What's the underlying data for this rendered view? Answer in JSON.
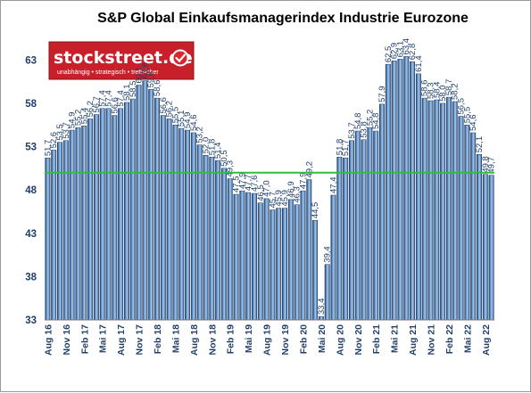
{
  "chart_data": {
    "type": "bar",
    "title": "S&P Global Einkaufsmanagerindex Industrie Eurozone",
    "xlabel": "",
    "ylabel": "",
    "ylim": [
      33,
      65.5
    ],
    "yticks": [
      33,
      38,
      43,
      48,
      53,
      58,
      63
    ],
    "grid": false,
    "reference_line": {
      "value": 50,
      "color": "#2fbf3a"
    },
    "bar_color": "#4a7db5",
    "tick_labels": [
      {
        "index": 0,
        "label": "Aug 16"
      },
      {
        "index": 3,
        "label": "Nov 16"
      },
      {
        "index": 6,
        "label": "Feb 17"
      },
      {
        "index": 9,
        "label": "Mai 17"
      },
      {
        "index": 12,
        "label": "Aug 17"
      },
      {
        "index": 15,
        "label": "Nov 17"
      },
      {
        "index": 18,
        "label": "Feb 18"
      },
      {
        "index": 21,
        "label": "Mai 18"
      },
      {
        "index": 24,
        "label": "Aug 18"
      },
      {
        "index": 27,
        "label": "Nov 18"
      },
      {
        "index": 30,
        "label": "Feb 19"
      },
      {
        "index": 33,
        "label": "Mai 19"
      },
      {
        "index": 36,
        "label": "Aug 19"
      },
      {
        "index": 39,
        "label": "Nov 19"
      },
      {
        "index": 42,
        "label": "Feb 20"
      },
      {
        "index": 45,
        "label": "Mai 20"
      },
      {
        "index": 48,
        "label": "Aug 20"
      },
      {
        "index": 51,
        "label": "Nov 20"
      },
      {
        "index": 54,
        "label": "Feb 21"
      },
      {
        "index": 57,
        "label": "Mai 21"
      },
      {
        "index": 60,
        "label": "Aug 21"
      },
      {
        "index": 63,
        "label": "Nov 21"
      },
      {
        "index": 66,
        "label": "Feb 22"
      },
      {
        "index": 69,
        "label": "Mai 22"
      },
      {
        "index": 72,
        "label": "Aug 22"
      }
    ],
    "values": [
      51.7,
      52.6,
      53.5,
      53.7,
      54.9,
      55.2,
      55.4,
      56.2,
      56.7,
      57.4,
      57.4,
      56.6,
      57.4,
      58.1,
      58.5,
      60.1,
      60.6,
      59.6,
      58.6,
      56.6,
      56.2,
      55.5,
      55.1,
      54.9,
      54.6,
      53.2,
      52.0,
      51.8,
      51.4,
      50.5,
      49.3,
      47.5,
      47.9,
      47.7,
      47.6,
      46.5,
      47.0,
      45.7,
      45.9,
      45.9,
      46.9,
      46.3,
      47.9,
      49.2,
      44.5,
      33.4,
      39.4,
      47.4,
      51.8,
      51.7,
      53.7,
      54.8,
      53.8,
      55.2,
      54.8,
      57.9,
      62.5,
      62.9,
      63.1,
      63.4,
      62.8,
      61.4,
      58.6,
      58.3,
      58.4,
      58.0,
      58.7,
      58.2,
      56.5,
      55.5,
      54.6,
      52.1,
      49.8,
      49.7
    ]
  },
  "logo": {
    "name": "stockstreet.de",
    "tagline": "unabhängig • strategisch • treffsicher",
    "background": "#c8202a"
  }
}
